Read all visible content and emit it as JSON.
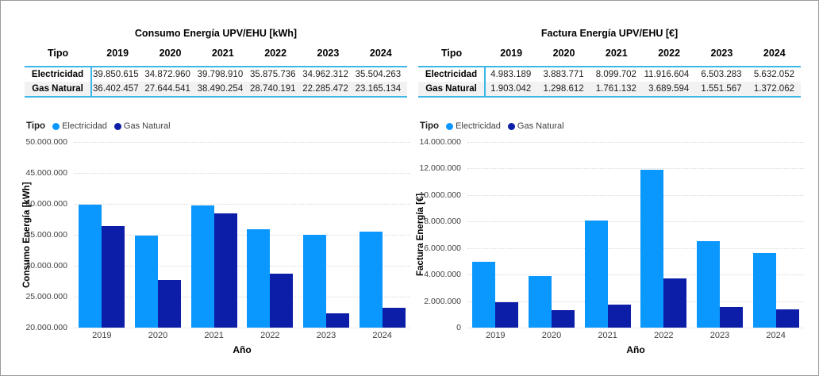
{
  "colors": {
    "electricidad": "#0A98FF",
    "gas_natural": "#0C1DA8",
    "table_accent": "#3DB6E8",
    "row_alt": "#F2F2F2",
    "gridline": "#D9D9D9",
    "axis_text": "#3F3F3F",
    "frame_border": "#9A9A9A"
  },
  "tables": [
    {
      "title": "Consumo Energía UPV/EHU [kWh]",
      "columns": [
        "Tipo",
        "2019",
        "2020",
        "2021",
        "2022",
        "2023",
        "2024"
      ],
      "rows": [
        {
          "label": "Electricidad",
          "values": [
            "39.850.615",
            "34.872.960",
            "39.798.910",
            "35.875.736",
            "34.962.312",
            "35.504.263"
          ]
        },
        {
          "label": "Gas Natural",
          "values": [
            "36.402.457",
            "27.644.541",
            "38.490.254",
            "28.740.191",
            "22.285.472",
            "23.165.134"
          ]
        }
      ]
    },
    {
      "title": "Factura Energía UPV/EHU [€]",
      "columns": [
        "Tipo",
        "2019",
        "2020",
        "2021",
        "2022",
        "2023",
        "2024"
      ],
      "rows": [
        {
          "label": "Electricidad",
          "values": [
            "4.983.189",
            "3.883.771",
            "8.099.702",
            "11.916.604",
            "6.503.283",
            "5.632.052"
          ]
        },
        {
          "label": "Gas Natural",
          "values": [
            "1.903.042",
            "1.298.612",
            "1.761.132",
            "3.689.594",
            "1.551.567",
            "1.372.062"
          ]
        }
      ]
    }
  ],
  "chart_data": [
    {
      "type": "bar",
      "legend_title": "Tipo",
      "legend_position": "top-left",
      "categories": [
        "2019",
        "2020",
        "2021",
        "2022",
        "2023",
        "2024"
      ],
      "series": [
        {
          "name": "Electricidad",
          "color": "#0A98FF",
          "values": [
            39850615,
            34872960,
            39798910,
            35875736,
            34962312,
            35504263
          ]
        },
        {
          "name": "Gas Natural",
          "color": "#0C1DA8",
          "values": [
            36402457,
            27644541,
            38490254,
            28740191,
            22285472,
            23165134
          ]
        }
      ],
      "xlabel": "Año",
      "ylabel": "Consumo Energía [kWh]",
      "ylim": [
        20000000,
        50000000
      ],
      "ytick_step": 5000000,
      "ytick_labels": [
        "50.000.000",
        "45.000.000",
        "40.000.000",
        "35.000.000",
        "30.000.000",
        "25.000.000",
        "20.000.000"
      ],
      "grid": "horizontal-dotted"
    },
    {
      "type": "bar",
      "legend_title": "Tipo",
      "legend_position": "top-left",
      "categories": [
        "2019",
        "2020",
        "2021",
        "2022",
        "2023",
        "2024"
      ],
      "series": [
        {
          "name": "Electricidad",
          "color": "#0A98FF",
          "values": [
            4983189,
            3883771,
            8099702,
            11916604,
            6503283,
            5632052
          ]
        },
        {
          "name": "Gas Natural",
          "color": "#0C1DA8",
          "values": [
            1903042,
            1298612,
            1761132,
            3689594,
            1551567,
            1372062
          ]
        }
      ],
      "xlabel": "Año",
      "ylabel": "Factura Energía [€]",
      "ylim": [
        0,
        14000000
      ],
      "ytick_step": 2000000,
      "ytick_labels": [
        "14.000.000",
        "12.000.000",
        "10.000.000",
        "8.000.000",
        "6.000.000",
        "4.000.000",
        "2.000.000",
        "0"
      ],
      "grid": "horizontal-dotted"
    }
  ]
}
